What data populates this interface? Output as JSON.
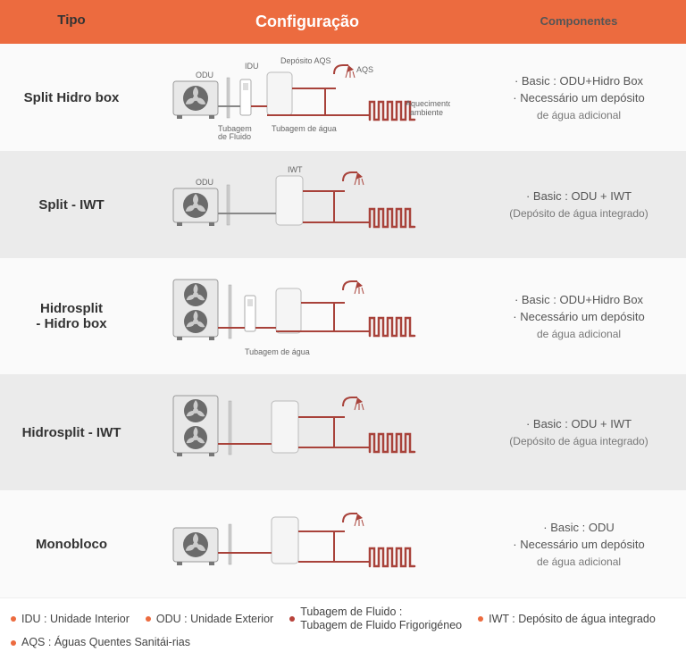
{
  "header": {
    "tipo": "Tipo",
    "config": "Configuração",
    "comp": "Componentes"
  },
  "rows": [
    {
      "type": "Split Hidro box",
      "diagram": "split_hidrobox",
      "comp": [
        "· Basic : ODU+Hidro Box",
        "· Necessário um depósito",
        "de água adicional"
      ]
    },
    {
      "type": "Split - IWT",
      "diagram": "split_iwt",
      "comp": [
        "· Basic : ODU + IWT",
        "(Depósito de água integrado)"
      ]
    },
    {
      "type": "Hidrosplit\n- Hidro box",
      "diagram": "hidrosplit_hidrobox",
      "comp": [
        "· Basic : ODU+Hidro Box",
        "· Necessário um depósito",
        "de água adicional"
      ]
    },
    {
      "type": "Hidrosplit - IWT",
      "diagram": "hidrosplit_iwt",
      "comp": [
        "· Basic : ODU + IWT",
        "(Depósito de água integrado)"
      ]
    },
    {
      "type": "Monobloco",
      "diagram": "monobloco",
      "comp": [
        "· Basic : ODU",
        "· Necessário um depósito",
        "de água adicional"
      ]
    }
  ],
  "labels": {
    "odu": "ODU",
    "idu": "IDU",
    "iwt": "IWT",
    "deposito_aqs": "Depósito AQS",
    "aqs": "AQS",
    "aquec": "Aquecimento\nambiente",
    "tub_fluido": "Tubagem\nde Fluido",
    "tub_agua": "Tubagem de água"
  },
  "legend": [
    {
      "dot": "orange",
      "text": "IDU : Unidade Interior"
    },
    {
      "dot": "orange",
      "text": "ODU : Unidade Exterior"
    },
    {
      "dot": "red",
      "text": "Tubagem de Fluido :\nTubagem de Fluido Frigorigéneo"
    },
    {
      "dot": "orange",
      "text": "IWT : Depósito de água integrado"
    },
    {
      "dot": "orange",
      "text": "AQS : Águas Quentes Sanitái-rias"
    }
  ],
  "colors": {
    "header_bg": "#ec6b3f",
    "row_odd": "#fafafa",
    "row_even": "#ebebeb",
    "pipe_red": "#a8423a",
    "pipe_gray": "#888888",
    "unit_body": "#e8e8e8",
    "unit_dark": "#6b6b6b",
    "tank": "#f5f5f5"
  }
}
